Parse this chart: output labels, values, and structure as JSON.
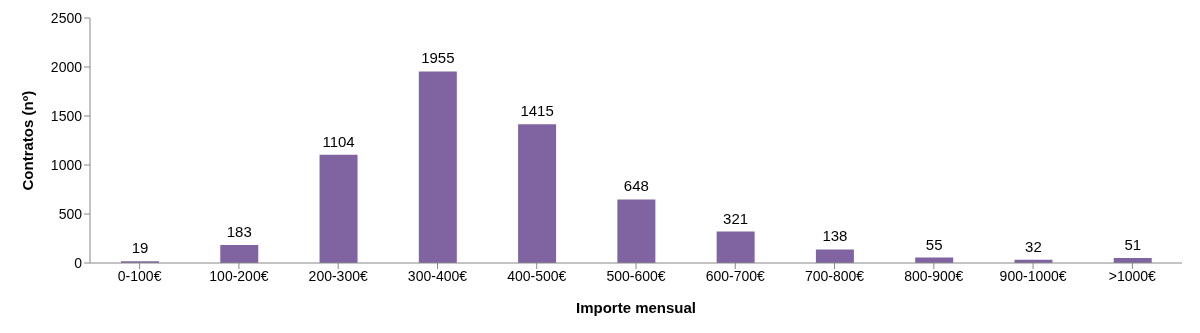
{
  "chart_data": {
    "type": "bar",
    "xlabel": "Importe mensual",
    "ylabel": "Contratos (nº)",
    "categories": [
      "0-100€",
      "100-200€",
      "200-300€",
      "300-400€",
      "400-500€",
      "500-600€",
      "600-700€",
      "700-800€",
      "800-900€",
      "900-1000€",
      ">1000€"
    ],
    "values": [
      19,
      183,
      1104,
      1955,
      1415,
      648,
      321,
      138,
      55,
      32,
      51
    ],
    "color": "#8064a2",
    "ylim": [
      0,
      2500
    ],
    "yticks": [
      0,
      500,
      1000,
      1500,
      2000,
      2500
    ],
    "data_labels": true,
    "grid": false,
    "legend": false
  }
}
